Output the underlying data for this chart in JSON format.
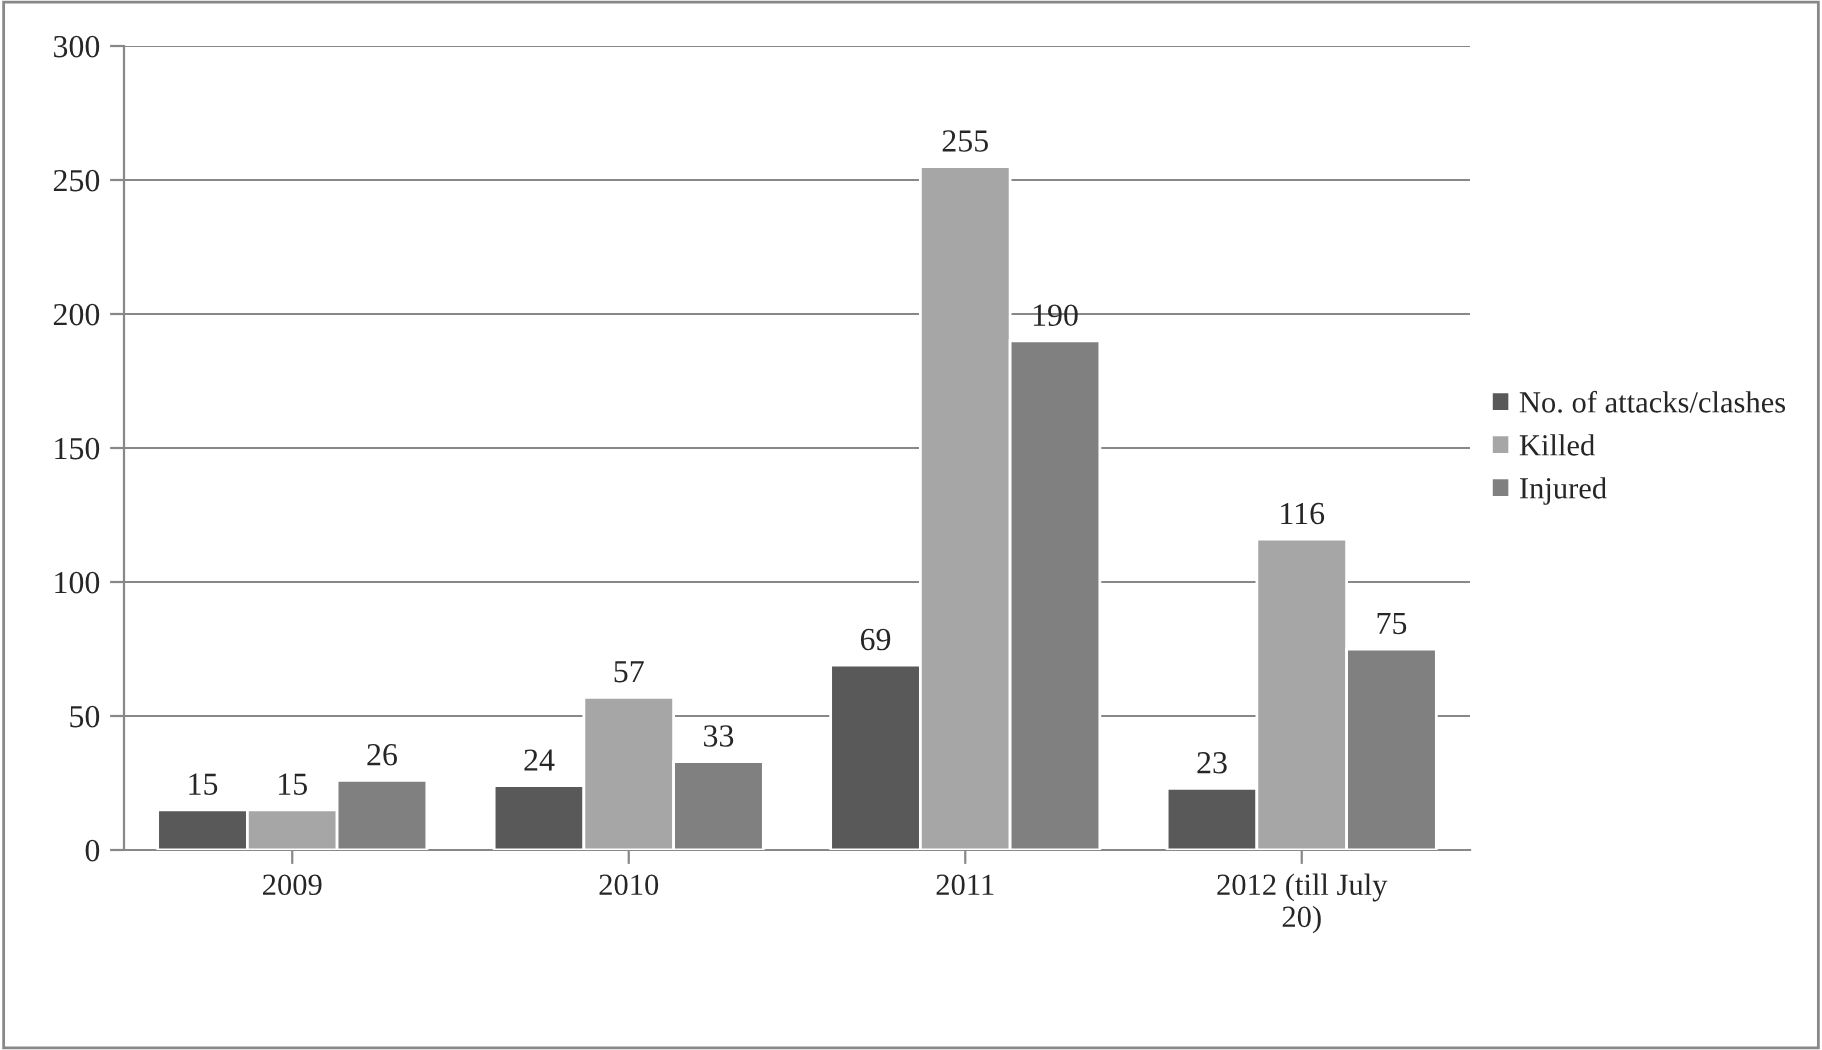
{
  "chart_data": {
    "type": "bar",
    "categories": [
      "2009",
      "2010",
      "2011",
      "2012 (till July 20)"
    ],
    "series": [
      {
        "name": "No. of attacks/clashes",
        "color": "#595959",
        "values": [
          15,
          24,
          69,
          23
        ]
      },
      {
        "name": "Killed",
        "color": "#a6a6a6",
        "values": [
          15,
          57,
          255,
          116
        ]
      },
      {
        "name": "Injured",
        "color": "#808080",
        "values": [
          26,
          33,
          190,
          75
        ]
      }
    ],
    "ylim": [
      0,
      300
    ],
    "yticks": [
      0,
      50,
      100,
      150,
      200,
      250,
      300
    ],
    "grid": "y",
    "legend": "right",
    "data_labels": true
  }
}
